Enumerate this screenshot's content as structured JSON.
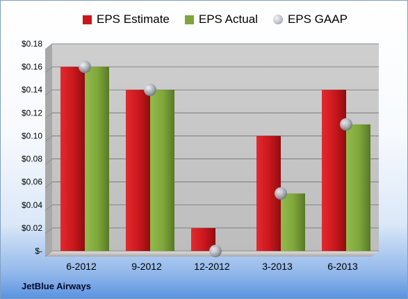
{
  "company_label": "JetBlue Airways",
  "chart_data": {
    "type": "bar",
    "categories": [
      "6-2012",
      "9-2012",
      "12-2012",
      "3-2013",
      "6-2013"
    ],
    "series": [
      {
        "name": "EPS Estimate",
        "color": "#c8171c",
        "render": "bar",
        "values": [
          0.16,
          0.14,
          0.02,
          0.1,
          0.14
        ]
      },
      {
        "name": "EPS Actual",
        "color": "#7ea63a",
        "render": "bar",
        "values": [
          0.16,
          0.14,
          null,
          0.05,
          0.11
        ]
      },
      {
        "name": "EPS GAAP",
        "color": "#b8bec6",
        "render": "marker",
        "values": [
          0.16,
          0.14,
          0.0,
          0.05,
          0.11
        ]
      }
    ],
    "ylim": [
      0,
      0.18
    ],
    "yticks": [
      0,
      0.02,
      0.04,
      0.06,
      0.08,
      0.1,
      0.12,
      0.14,
      0.16,
      0.18
    ],
    "ytick_labels": [
      "$-",
      "$0.02",
      "$0.04",
      "$0.06",
      "$0.08",
      "$0.10",
      "$0.12",
      "$0.14",
      "$0.16",
      "$0.18"
    ],
    "grid": true,
    "legend_position": "top"
  }
}
